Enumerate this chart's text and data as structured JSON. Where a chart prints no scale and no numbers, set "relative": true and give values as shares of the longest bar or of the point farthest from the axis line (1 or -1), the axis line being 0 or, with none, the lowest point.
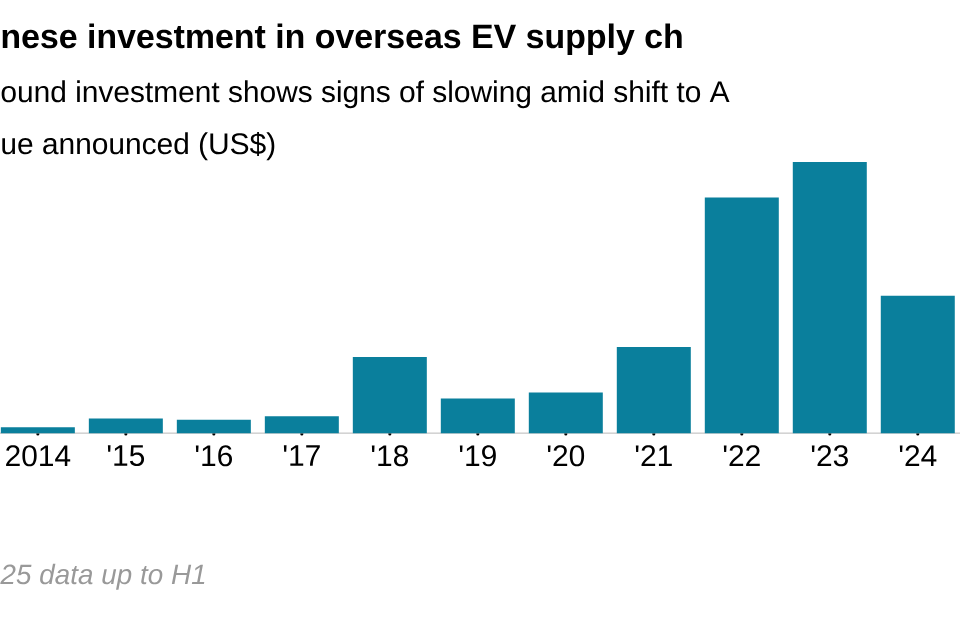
{
  "chart_data": {
    "type": "bar",
    "title": "nese investment in overseas EV supply ch",
    "subtitle": "ound investment shows signs of slowing amid shift to A",
    "ylabel": "ue announced (US$)",
    "annotations": [
      "25 data up to H1"
    ],
    "categories": [
      "2014",
      "'15",
      "'16",
      "'17",
      "'18",
      "'19",
      "'20",
      "'21",
      "'22",
      "'23",
      "'24"
    ],
    "values": [
      0.022,
      0.054,
      0.049,
      0.062,
      0.281,
      0.128,
      0.15,
      0.318,
      0.869,
      1,
      0.507
    ],
    "color": "#0a7f9c",
    "relative": true
  }
}
